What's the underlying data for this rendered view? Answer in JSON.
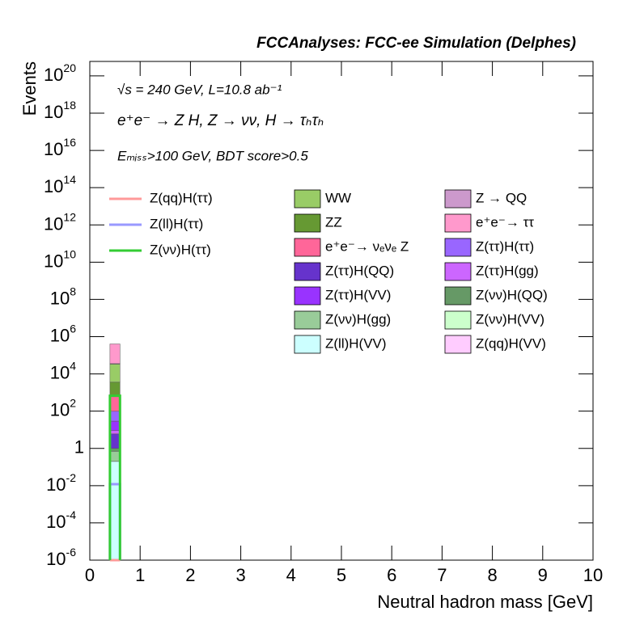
{
  "chart_data": {
    "type": "histogram",
    "title": "FCCAnalyses: FCC-ee Simulation (Delphes)",
    "annotations": [
      "√s = 240 GeV, L=10.8 ab⁻¹",
      "e⁺e⁻ → Z H, Z → νν, H → τₕτₕ",
      "Eₘᵢₛₛ>100 GeV, BDT score>0.5"
    ],
    "x_label": "Neutral hadron mass [GeV]",
    "y_label": "Events",
    "log_y": true,
    "bins": [
      0.4,
      0.6
    ],
    "xlim": [
      0,
      10
    ],
    "xticks": [
      0,
      1,
      2,
      3,
      4,
      5,
      6,
      7,
      8,
      9,
      10
    ],
    "ylim": [
      1e-06,
      6e+20
    ],
    "yticks": [
      {
        "value": 1e-06,
        "label": "10",
        "sup": "-6"
      },
      {
        "value": 0.0001,
        "label": "10",
        "sup": "-4"
      },
      {
        "value": 0.01,
        "label": "10",
        "sup": "-2"
      },
      1,
      {
        "value": 100,
        "label": "10",
        "sup": "2"
      },
      {
        "value": 10000.0,
        "label": "10",
        "sup": "4"
      },
      {
        "value": 1000000.0,
        "label": "10",
        "sup": "6"
      },
      {
        "value": 100000000.0,
        "label": "10",
        "sup": "8"
      },
      {
        "value": 10000000000.0,
        "label": "10",
        "sup": "10"
      },
      {
        "value": 1000000000000.0,
        "label": "10",
        "sup": "12"
      },
      {
        "value": 100000000000000.0,
        "label": "10",
        "sup": "14"
      },
      {
        "value": 1e+16,
        "label": "10",
        "sup": "16"
      },
      {
        "value": 1e+18,
        "label": "10",
        "sup": "18"
      },
      {
        "value": 1e+20,
        "label": "10",
        "sup": "20"
      }
    ],
    "stacked_series": [
      {
        "name": "Z(ll)H(VV)",
        "color": "#ccffff",
        "values": [
          0.2
        ]
      },
      {
        "name": "Z(νν)H(VV)",
        "color": "#ccffcc",
        "values": [
          0
        ]
      },
      {
        "name": "Z(qq)H(VV)",
        "color": "#ffccff",
        "values": [
          0
        ]
      },
      {
        "name": "Z(νν)H(gg)",
        "color": "#99cc99",
        "values": [
          0.5
        ]
      },
      {
        "name": "Z(νν)H(QQ)",
        "color": "#669966",
        "values": [
          0.3
        ]
      },
      {
        "name": "Z(ττ)H(QQ)",
        "color": "#6633cc",
        "values": [
          5
        ]
      },
      {
        "name": "Z(ττ)H(gg)",
        "color": "#cc66ff",
        "values": [
          3
        ]
      },
      {
        "name": "Z(ττ)H(VV)",
        "color": "#9933ff",
        "values": [
          20
        ]
      },
      {
        "name": "Z(ττ)H(ττ)",
        "color": "#9966ff",
        "values": [
          70
        ]
      },
      {
        "name": "e⁺e⁻→ νₑνₑ Z",
        "color": "#ff6699",
        "values": [
          500
        ]
      },
      {
        "name": "ZZ",
        "color": "#669933",
        "values": [
          3000
        ]
      },
      {
        "name": "WW",
        "color": "#99cc66",
        "values": [
          30000
        ]
      },
      {
        "name": "Z → QQ",
        "color": "#cc99cc",
        "values": [
          2000
        ]
      },
      {
        "name": "e⁺e⁻→ ττ",
        "color": "#ff99cc",
        "values": [
          370000
        ]
      }
    ],
    "line_series": [
      {
        "name": "Z(qq)H(ττ)",
        "color": "#ff9999",
        "values": [
          0
        ]
      },
      {
        "name": "Z(ll)H(ττ)",
        "color": "#9999ff",
        "values": [
          0.012
        ]
      },
      {
        "name": "Z(νν)H(ττ)",
        "color": "#33cc33",
        "values": [
          670
        ]
      }
    ]
  }
}
